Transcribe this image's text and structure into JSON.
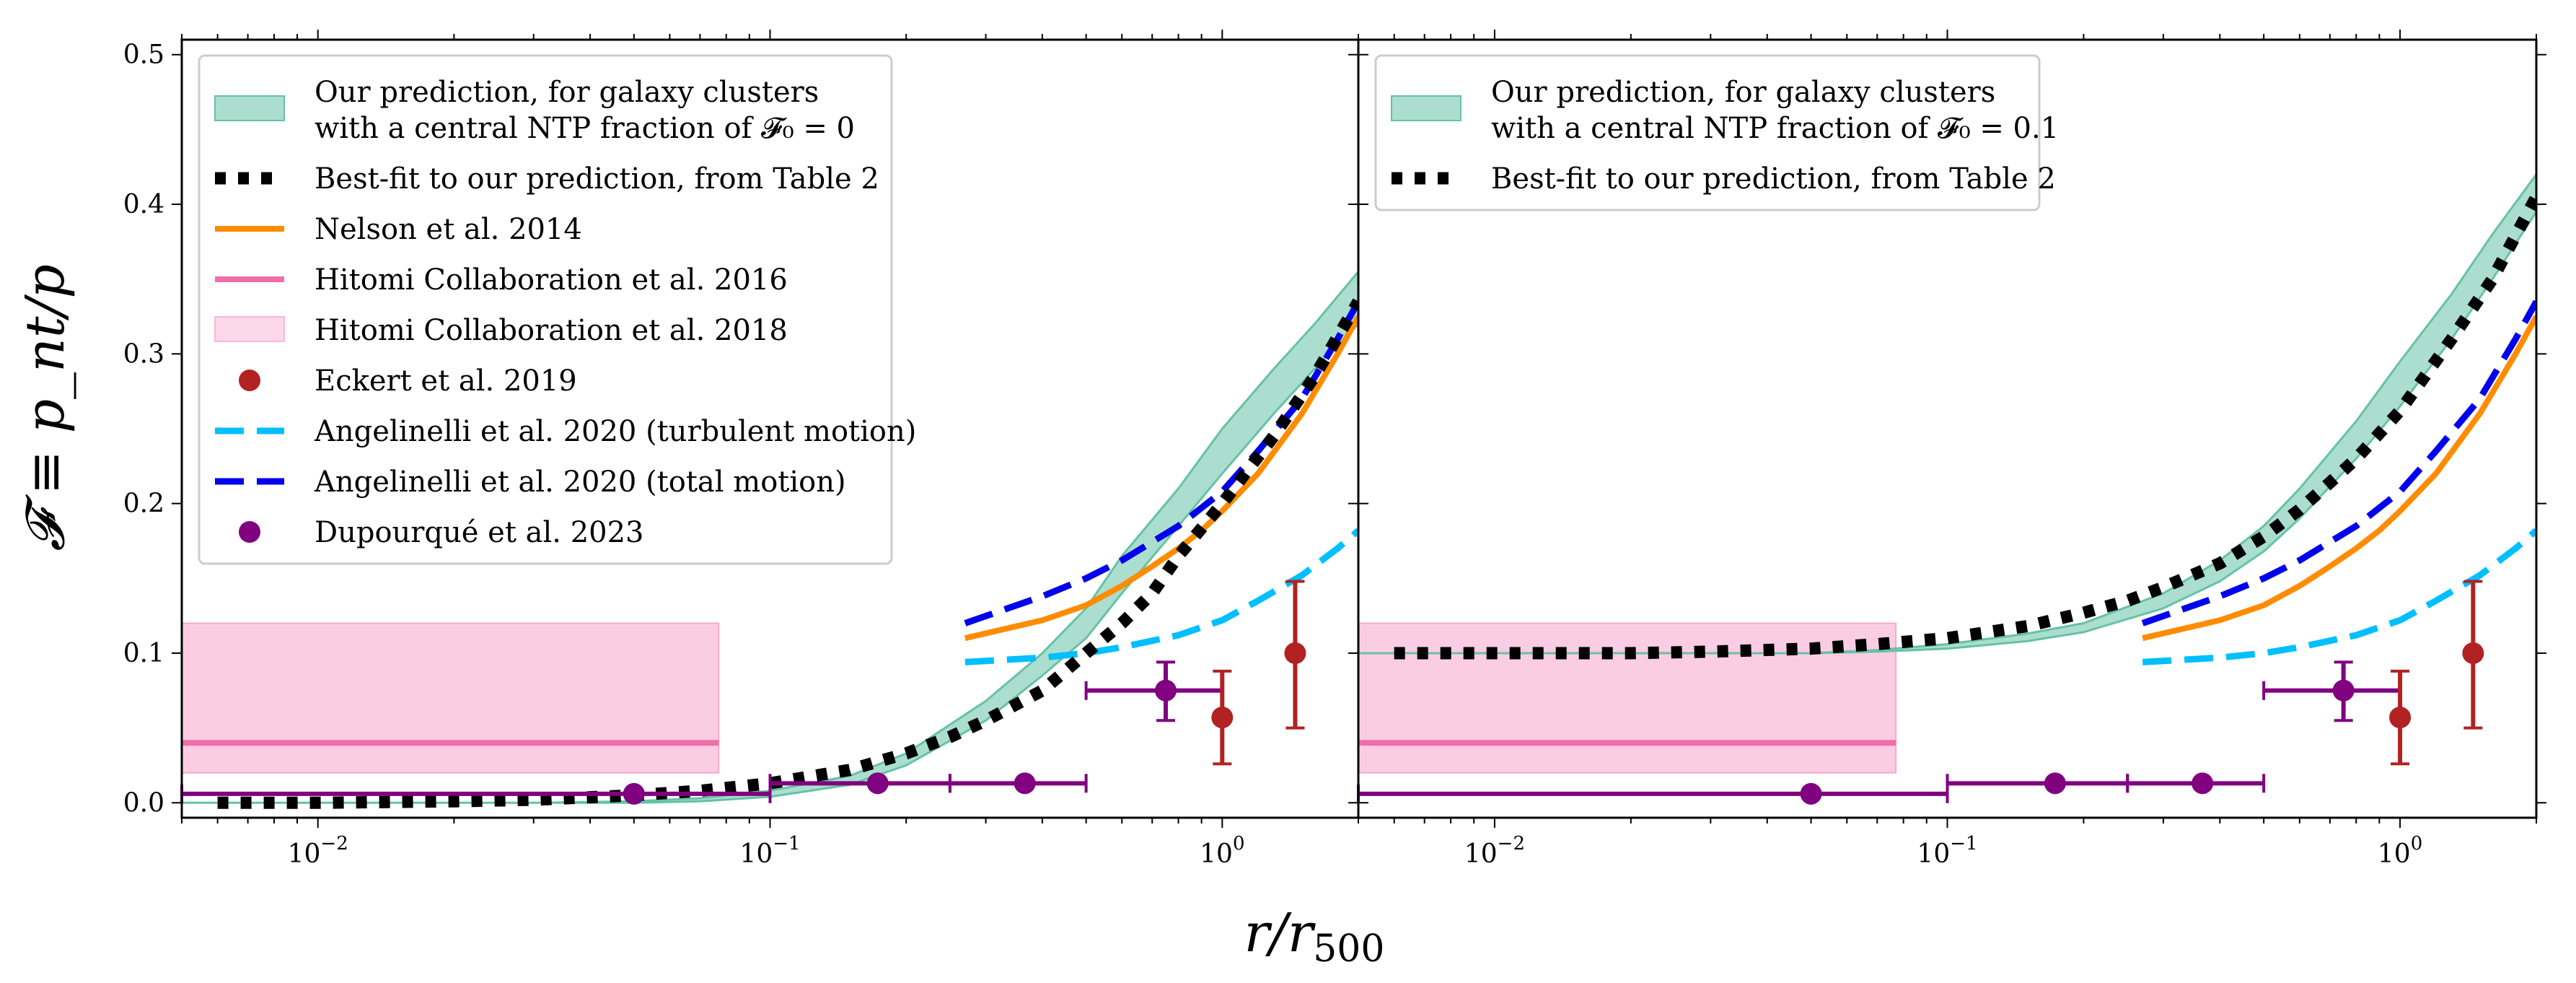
{
  "chart_data": [
    {
      "type": "line",
      "panel": "left",
      "xscale": "log",
      "xlim": [
        0.005,
        2.0
      ],
      "ylim": [
        -0.01,
        0.51
      ],
      "xticks": [
        {
          "value": 0.01,
          "label": "10−2"
        },
        {
          "value": 0.1,
          "label": "10−1"
        },
        {
          "value": 1,
          "label": "100"
        }
      ],
      "yticks": [
        {
          "value": 0.0,
          "label": "0.0"
        },
        {
          "value": 0.1,
          "label": "0.1"
        },
        {
          "value": 0.2,
          "label": "0.2"
        },
        {
          "value": 0.3,
          "label": "0.3"
        },
        {
          "value": 0.4,
          "label": "0.4"
        },
        {
          "value": 0.5,
          "label": "0.5"
        }
      ],
      "legend_position": "upper-left",
      "legend": [
        {
          "key": "prediction",
          "label": "Our prediction, for galaxy clusters\nwith a central NTP fraction of 𝓕₀ = 0",
          "style": "patch",
          "color": "#66c2a5"
        },
        {
          "key": "bestfit",
          "label": "Best-fit to our prediction, from Table 2",
          "style": "dotted",
          "color": "#000000"
        },
        {
          "key": "nelson",
          "label": "Nelson et al. 2014",
          "style": "line",
          "color": "#ff8c00"
        },
        {
          "key": "hitomi2016",
          "label": "Hitomi Collaboration et al. 2016",
          "style": "line",
          "color": "#f06eaa"
        },
        {
          "key": "hitomi2018",
          "label": "Hitomi Collaboration et al. 2018",
          "style": "patch",
          "color": "#f9b8d8"
        },
        {
          "key": "eckert",
          "label": "Eckert et al. 2019",
          "style": "marker",
          "color": "#b22222"
        },
        {
          "key": "ang_turb",
          "label": "Angelinelli et al. 2020 (turbulent motion)",
          "style": "dashed",
          "color": "#00bfff"
        },
        {
          "key": "ang_total",
          "label": "Angelinelli et al. 2020 (total motion)",
          "style": "dashed",
          "color": "#0000ee"
        },
        {
          "key": "dupourque",
          "label": "Dupourqué et al. 2023",
          "style": "marker",
          "color": "#800080"
        }
      ],
      "prediction_band": {
        "x": [
          0.005,
          0.03,
          0.05,
          0.07,
          0.1,
          0.15,
          0.2,
          0.3,
          0.4,
          0.5,
          0.6,
          0.8,
          1.0,
          1.3,
          1.6,
          2.0
        ],
        "lower": [
          0.0,
          0.0,
          0.0,
          0.001,
          0.004,
          0.012,
          0.025,
          0.055,
          0.085,
          0.11,
          0.14,
          0.185,
          0.22,
          0.26,
          0.29,
          0.32
        ],
        "upper": [
          0.0,
          0.0,
          0.001,
          0.003,
          0.008,
          0.018,
          0.033,
          0.068,
          0.1,
          0.13,
          0.165,
          0.21,
          0.25,
          0.29,
          0.32,
          0.355
        ]
      },
      "series": [
        {
          "key": "bestfit",
          "x": [
            0.006,
            0.01,
            0.02,
            0.03,
            0.05,
            0.07,
            0.1,
            0.15,
            0.2,
            0.25,
            0.3,
            0.4,
            0.5,
            0.6,
            0.7,
            0.8,
            1.0,
            1.3,
            1.6,
            2.0
          ],
          "y": [
            0.0,
            0.0,
            0.001,
            0.002,
            0.005,
            0.008,
            0.013,
            0.022,
            0.033,
            0.044,
            0.055,
            0.075,
            0.1,
            0.12,
            0.14,
            0.165,
            0.2,
            0.245,
            0.285,
            0.335
          ]
        },
        {
          "key": "nelson",
          "x": [
            0.27,
            0.4,
            0.5,
            0.6,
            0.7,
            0.8,
            0.9,
            1.0,
            1.2,
            1.5,
            1.8,
            2.0
          ],
          "y": [
            0.11,
            0.122,
            0.132,
            0.145,
            0.158,
            0.17,
            0.182,
            0.195,
            0.22,
            0.26,
            0.3,
            0.325
          ]
        },
        {
          "key": "ang_turb",
          "x": [
            0.27,
            0.4,
            0.5,
            0.6,
            0.8,
            1.0,
            1.2,
            1.5,
            1.8,
            2.0
          ],
          "y": [
            0.094,
            0.097,
            0.1,
            0.104,
            0.112,
            0.122,
            0.135,
            0.152,
            0.17,
            0.182
          ]
        },
        {
          "key": "ang_total",
          "x": [
            0.27,
            0.4,
            0.5,
            0.6,
            0.8,
            1.0,
            1.2,
            1.5,
            1.8,
            2.0
          ],
          "y": [
            0.12,
            0.138,
            0.15,
            0.162,
            0.185,
            0.208,
            0.235,
            0.27,
            0.31,
            0.335
          ]
        },
        {
          "key": "hitomi2016",
          "x": [
            0.005,
            0.077
          ],
          "y": [
            0.04,
            0.04
          ]
        }
      ],
      "hitomi2018_box": {
        "x": [
          0.005,
          0.077
        ],
        "y": [
          0.02,
          0.12
        ]
      },
      "eckert_points": [
        {
          "x": 1.0,
          "y": 0.057,
          "ylo": 0.026,
          "yhi": 0.088
        },
        {
          "x": 1.45,
          "y": 0.1,
          "ylo": 0.05,
          "yhi": 0.148
        }
      ],
      "dupourque_points": [
        {
          "x": 0.05,
          "y": 0.006,
          "xlo": 0.005,
          "xhi": 0.1
        },
        {
          "x": 0.173,
          "y": 0.013,
          "xlo": 0.1,
          "xhi": 0.25
        },
        {
          "x": 0.366,
          "y": 0.013,
          "xlo": 0.25,
          "xhi": 0.5
        },
        {
          "x": 0.75,
          "y": 0.075,
          "xlo": 0.5,
          "xhi": 1.0,
          "ylo": 0.055,
          "yhi": 0.094
        }
      ]
    },
    {
      "type": "line",
      "panel": "right",
      "xscale": "log",
      "xlim": [
        0.005,
        2.0
      ],
      "ylim": [
        -0.01,
        0.51
      ],
      "xticks": [
        {
          "value": 0.01,
          "label": "10−2"
        },
        {
          "value": 0.1,
          "label": "10−1"
        },
        {
          "value": 1,
          "label": "100"
        }
      ],
      "legend_position": "upper-left",
      "legend": [
        {
          "key": "prediction",
          "label": "Our prediction, for galaxy clusters\nwith a central NTP fraction of 𝓕₀ = 0.1",
          "style": "patch",
          "color": "#66c2a5"
        },
        {
          "key": "bestfit",
          "label": "Best-fit to our prediction, from Table 2",
          "style": "dotted",
          "color": "#000000"
        }
      ],
      "prediction_band": {
        "x": [
          0.005,
          0.03,
          0.05,
          0.07,
          0.1,
          0.15,
          0.2,
          0.3,
          0.4,
          0.5,
          0.6,
          0.8,
          1.0,
          1.3,
          1.6,
          2.0
        ],
        "lower": [
          0.1,
          0.1,
          0.1,
          0.101,
          0.103,
          0.108,
          0.114,
          0.13,
          0.148,
          0.168,
          0.19,
          0.23,
          0.265,
          0.31,
          0.35,
          0.395
        ],
        "upper": [
          0.1,
          0.1,
          0.1,
          0.102,
          0.106,
          0.113,
          0.12,
          0.14,
          0.162,
          0.185,
          0.21,
          0.255,
          0.295,
          0.34,
          0.38,
          0.42
        ]
      },
      "series": [
        {
          "key": "bestfit",
          "x": [
            0.006,
            0.01,
            0.02,
            0.03,
            0.05,
            0.07,
            0.1,
            0.15,
            0.2,
            0.25,
            0.3,
            0.4,
            0.5,
            0.6,
            0.7,
            0.8,
            1.0,
            1.3,
            1.6,
            2.0
          ],
          "y": [
            0.1,
            0.1,
            0.1,
            0.101,
            0.103,
            0.106,
            0.11,
            0.118,
            0.127,
            0.135,
            0.144,
            0.16,
            0.178,
            0.196,
            0.214,
            0.23,
            0.262,
            0.31,
            0.35,
            0.405
          ]
        },
        {
          "key": "nelson",
          "x": [
            0.27,
            0.4,
            0.5,
            0.6,
            0.7,
            0.8,
            0.9,
            1.0,
            1.2,
            1.5,
            1.8,
            2.0
          ],
          "y": [
            0.11,
            0.122,
            0.132,
            0.145,
            0.158,
            0.17,
            0.182,
            0.195,
            0.22,
            0.26,
            0.3,
            0.325
          ]
        },
        {
          "key": "ang_turb",
          "x": [
            0.27,
            0.4,
            0.5,
            0.6,
            0.8,
            1.0,
            1.2,
            1.5,
            1.8,
            2.0
          ],
          "y": [
            0.094,
            0.097,
            0.1,
            0.104,
            0.112,
            0.122,
            0.135,
            0.152,
            0.17,
            0.182
          ]
        },
        {
          "key": "ang_total",
          "x": [
            0.27,
            0.4,
            0.5,
            0.6,
            0.8,
            1.0,
            1.2,
            1.5,
            1.8,
            2.0
          ],
          "y": [
            0.12,
            0.138,
            0.15,
            0.162,
            0.185,
            0.208,
            0.235,
            0.27,
            0.31,
            0.335
          ]
        },
        {
          "key": "hitomi2016",
          "x": [
            0.005,
            0.077
          ],
          "y": [
            0.04,
            0.04
          ]
        }
      ],
      "hitomi2018_box": {
        "x": [
          0.005,
          0.077
        ],
        "y": [
          0.02,
          0.12
        ]
      },
      "eckert_points": [
        {
          "x": 1.0,
          "y": 0.057,
          "ylo": 0.026,
          "yhi": 0.088
        },
        {
          "x": 1.45,
          "y": 0.1,
          "ylo": 0.05,
          "yhi": 0.148
        }
      ],
      "dupourque_points": [
        {
          "x": 0.05,
          "y": 0.006,
          "xlo": 0.005,
          "xhi": 0.1
        },
        {
          "x": 0.173,
          "y": 0.013,
          "xlo": 0.1,
          "xhi": 0.25
        },
        {
          "x": 0.366,
          "y": 0.013,
          "xlo": 0.25,
          "xhi": 0.5
        },
        {
          "x": 0.75,
          "y": 0.075,
          "xlo": 0.5,
          "xhi": 1.0,
          "ylo": 0.055,
          "yhi": 0.094
        }
      ]
    }
  ],
  "axes": {
    "xlabel": {
      "main": "r/r",
      "sub": "500"
    },
    "ylabel": "𝓕 ≡ p_nt/p"
  },
  "colors": {
    "prediction": "#66c2a5",
    "bestfit": "#000000",
    "nelson": "#ff8c00",
    "hitomi2016": "#f06eaa",
    "hitomi2018": "#f9b8d8",
    "eckert": "#b22222",
    "ang_turb": "#00bfff",
    "ang_total": "#0000ee",
    "dupourque": "#800080"
  }
}
